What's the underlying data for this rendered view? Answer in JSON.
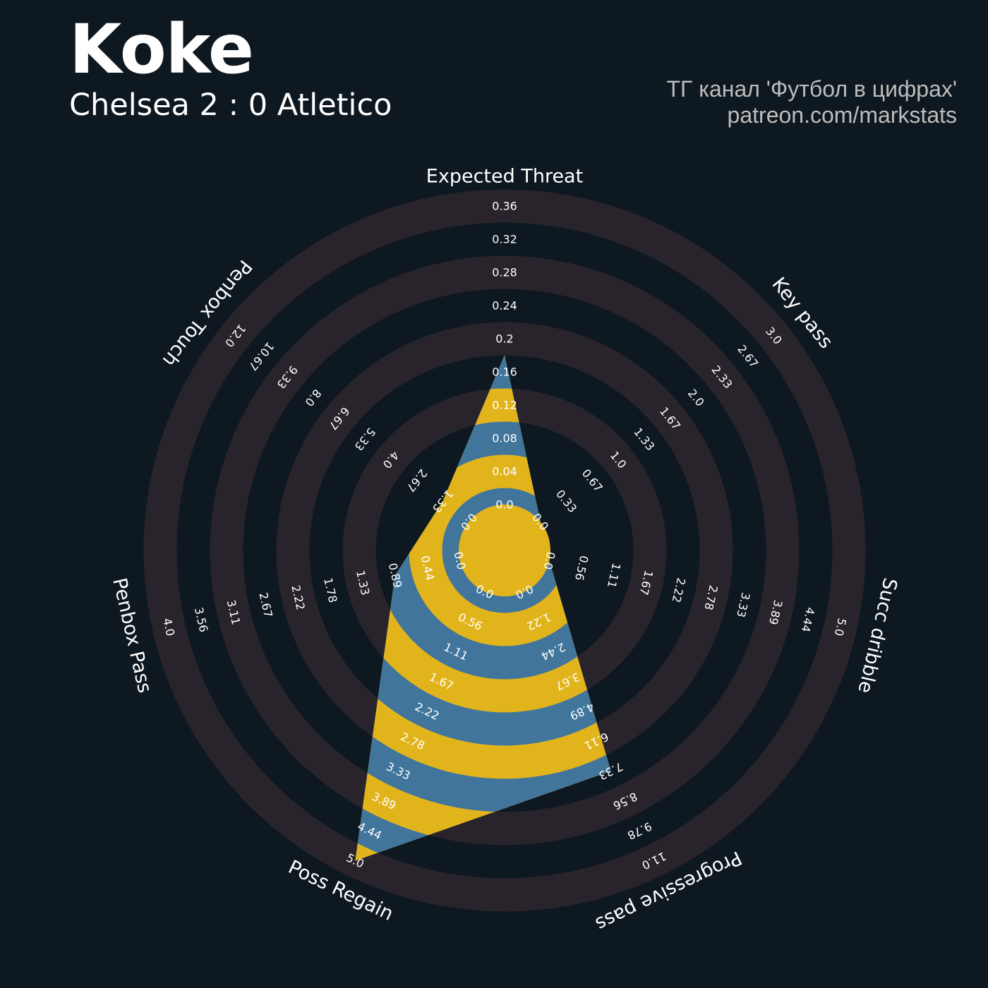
{
  "header": {
    "title": "Koke",
    "subtitle": "Chelsea 2 : 0 Atletico",
    "credit_line1": "ТГ канал 'Футбол в цифрах'",
    "credit_line2": "patreon.com/markstats"
  },
  "colors": {
    "background": "#0e1820",
    "ring_band": "#29242b",
    "fill_blue": "#41759c",
    "fill_yellow": "#e2b41c",
    "label": "#ffffff",
    "credit": "#bdbdbd"
  },
  "chart_data": {
    "type": "radar",
    "title": "Koke",
    "subtitle": "Chelsea 2 : 0 Atletico",
    "params": [
      "Expected Threat",
      "Key pass",
      "Succ dribble",
      "Progressive pass",
      "Poss Regain",
      "Penbox Pass",
      "Penbox Touch"
    ],
    "values": [
      0.18,
      0,
      0,
      7.33,
      5,
      0.89,
      1.33
    ],
    "ranges": [
      [
        0.0,
        0.36
      ],
      [
        0.0,
        3.0
      ],
      [
        0.0,
        5.0
      ],
      [
        0.0,
        11.0
      ],
      [
        0.0,
        5.0
      ],
      [
        0.0,
        4.0
      ],
      [
        0.0,
        12.0
      ]
    ],
    "tick_labels": [
      [
        "0.0",
        "0.04",
        "0.08",
        "0.12",
        "0.16",
        "0.2",
        "0.24",
        "0.28",
        "0.32",
        "0.36"
      ],
      [
        "0.0",
        "0.33",
        "0.67",
        "1.0",
        "1.33",
        "1.67",
        "2.0",
        "2.33",
        "2.67",
        "3.0"
      ],
      [
        "0.0",
        "0.56",
        "1.11",
        "1.67",
        "2.22",
        "2.78",
        "3.33",
        "3.89",
        "4.44",
        "5.0"
      ],
      [
        "0.0",
        "1.22",
        "2.44",
        "3.67",
        "4.89",
        "6.11",
        "7.33",
        "8.56",
        "9.78",
        "11.0"
      ],
      [
        "0.0",
        "0.56",
        "1.11",
        "1.67",
        "2.22",
        "2.78",
        "3.33",
        "3.89",
        "4.44",
        "5.0"
      ],
      [
        "0.0",
        "0.44",
        "0.89",
        "1.33",
        "1.78",
        "2.22",
        "2.67",
        "3.11",
        "3.56",
        "4.0"
      ],
      [
        "0.0",
        "1.33",
        "2.67",
        "4.0",
        "5.33",
        "6.67",
        "8.0",
        "9.33",
        "10.67",
        "12.0"
      ]
    ]
  }
}
